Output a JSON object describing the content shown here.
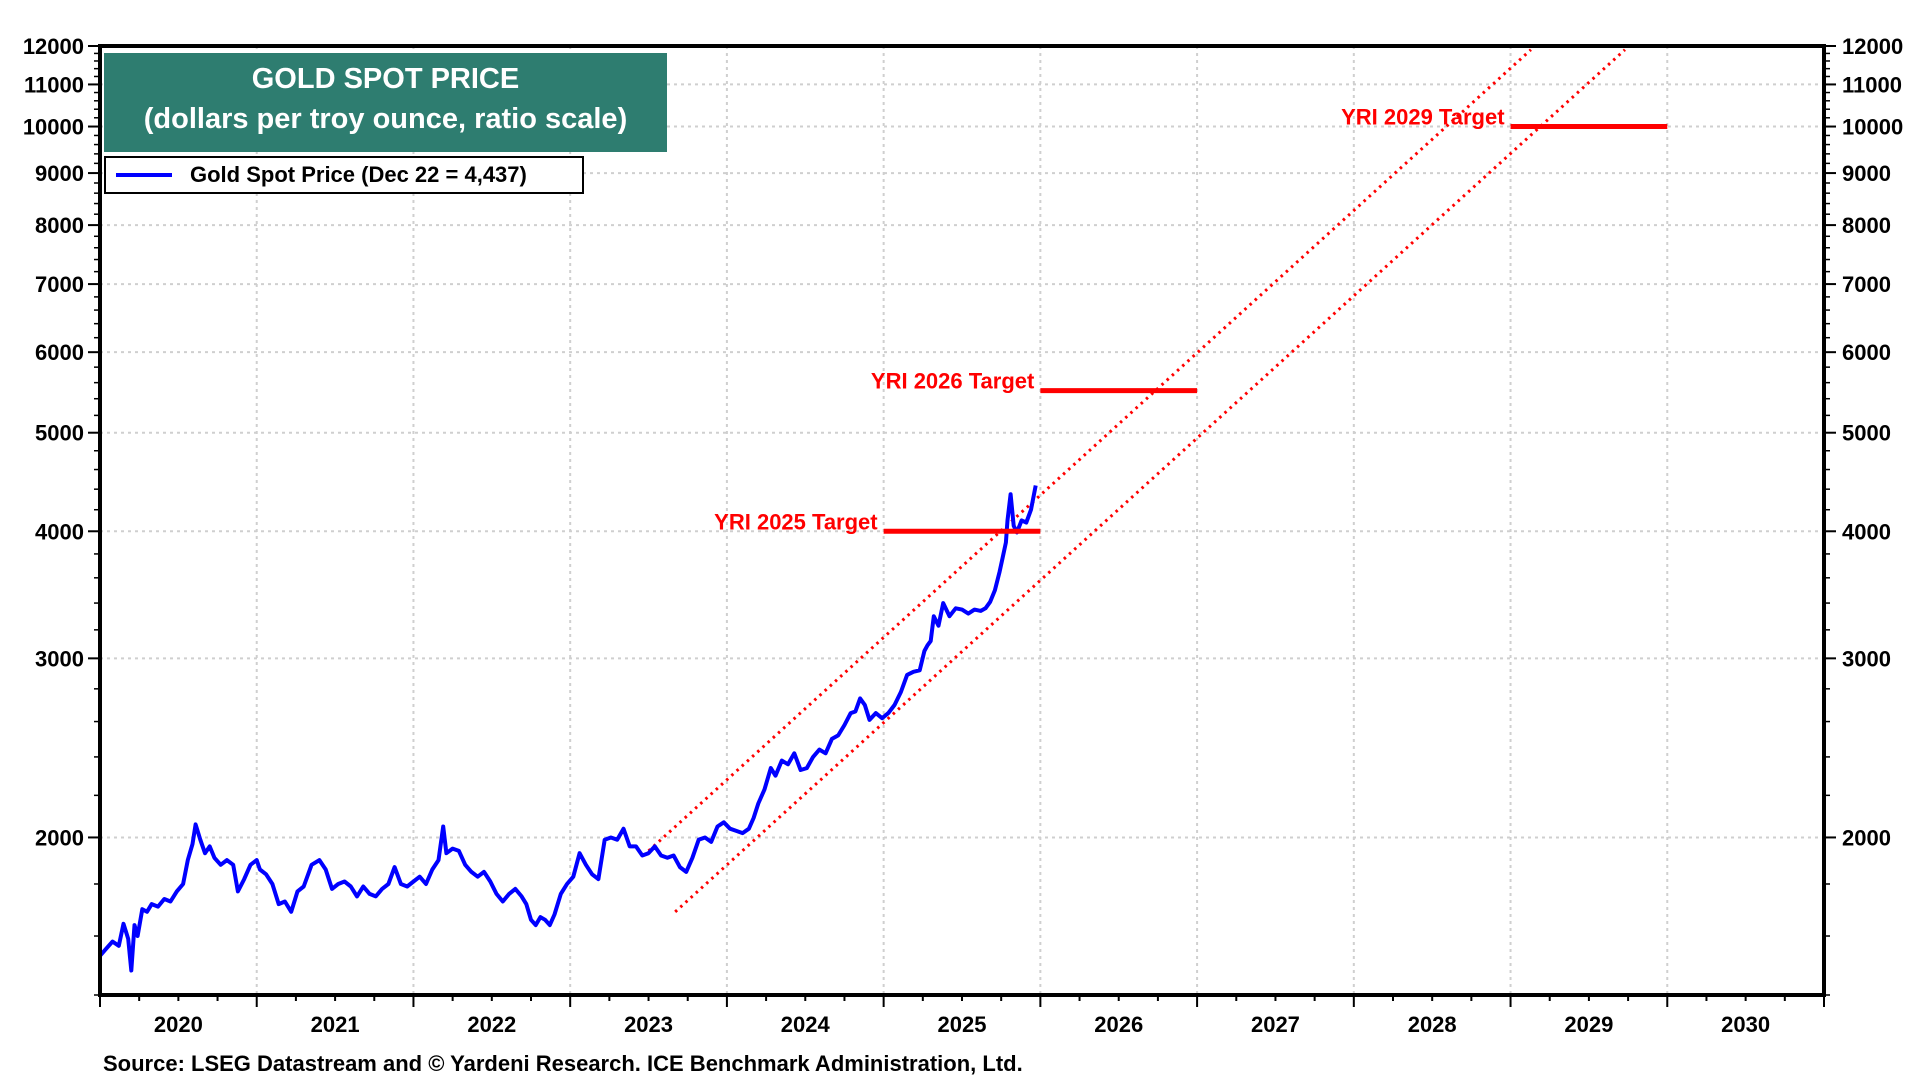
{
  "chart_data": {
    "type": "line",
    "title": "GOLD SPOT PRICE",
    "subtitle": "(dollars per troy ounce, ratio scale)",
    "xlabel": "",
    "ylabel": "",
    "yscale": "log",
    "ylim": [
      1400,
      12000
    ],
    "xlim": [
      2020.0,
      2031.0
    ],
    "grid": true,
    "legend_position": "top-left",
    "y_ticks": [
      2000,
      3000,
      4000,
      5000,
      6000,
      7000,
      8000,
      9000,
      10000,
      11000,
      12000
    ],
    "y_tick_labels": [
      "2000",
      "3000",
      "4000",
      "5000",
      "6000",
      "7000",
      "8000",
      "9000",
      "10000",
      "11000",
      "12000"
    ],
    "x_tick_labels": [
      "2020",
      "2021",
      "2022",
      "2023",
      "2024",
      "2025",
      "2026",
      "2027",
      "2028",
      "2029",
      "2030"
    ],
    "series": [
      {
        "name": "Gold Spot Price (Dec 22 = 4,437)",
        "color": "#0000ff",
        "x": [
          2020.0,
          2020.04,
          2020.08,
          2020.12,
          2020.15,
          2020.18,
          2020.2,
          2020.22,
          2020.24,
          2020.27,
          2020.3,
          2020.33,
          2020.37,
          2020.41,
          2020.45,
          2020.49,
          2020.53,
          2020.56,
          2020.59,
          2020.61,
          2020.64,
          2020.67,
          2020.7,
          2020.73,
          2020.77,
          2020.81,
          2020.85,
          2020.88,
          2020.92,
          2020.96,
          2021.0,
          2021.02,
          2021.06,
          2021.1,
          2021.14,
          2021.18,
          2021.22,
          2021.26,
          2021.3,
          2021.35,
          2021.4,
          2021.44,
          2021.48,
          2021.52,
          2021.56,
          2021.6,
          2021.64,
          2021.68,
          2021.72,
          2021.76,
          2021.8,
          2021.84,
          2021.88,
          2021.92,
          2021.96,
          2022.0,
          2022.04,
          2022.08,
          2022.12,
          2022.16,
          2022.19,
          2022.21,
          2022.25,
          2022.29,
          2022.33,
          2022.37,
          2022.41,
          2022.45,
          2022.49,
          2022.53,
          2022.57,
          2022.61,
          2022.65,
          2022.69,
          2022.72,
          2022.75,
          2022.78,
          2022.81,
          2022.84,
          2022.87,
          2022.9,
          2022.94,
          2022.98,
          2023.02,
          2023.06,
          2023.1,
          2023.14,
          2023.18,
          2023.22,
          2023.26,
          2023.3,
          2023.34,
          2023.38,
          2023.42,
          2023.46,
          2023.5,
          2023.54,
          2023.58,
          2023.62,
          2023.66,
          2023.7,
          2023.74,
          2023.78,
          2023.82,
          2023.86,
          2023.9,
          2023.94,
          2023.98,
          2024.02,
          2024.06,
          2024.1,
          2024.14,
          2024.17,
          2024.2,
          2024.24,
          2024.28,
          2024.31,
          2024.35,
          2024.39,
          2024.43,
          2024.47,
          2024.51,
          2024.55,
          2024.59,
          2024.63,
          2024.67,
          2024.71,
          2024.75,
          2024.79,
          2024.82,
          2024.85,
          2024.88,
          2024.91,
          2024.95,
          2024.99,
          2025.03,
          2025.07,
          2025.11,
          2025.15,
          2025.19,
          2025.23,
          2025.26,
          2025.28,
          2025.3,
          2025.32,
          2025.35,
          2025.38,
          2025.42,
          2025.46,
          2025.5,
          2025.54,
          2025.58,
          2025.62,
          2025.65,
          2025.68,
          2025.71,
          2025.74,
          2025.76,
          2025.78,
          2025.79,
          2025.81,
          2025.83,
          2025.85,
          2025.88,
          2025.91,
          2025.94,
          2025.97
        ],
        "y": [
          1530,
          1555,
          1580,
          1565,
          1645,
          1590,
          1480,
          1640,
          1600,
          1700,
          1690,
          1720,
          1710,
          1740,
          1730,
          1770,
          1800,
          1900,
          1970,
          2060,
          1990,
          1930,
          1960,
          1910,
          1880,
          1900,
          1880,
          1770,
          1820,
          1880,
          1900,
          1860,
          1840,
          1800,
          1720,
          1730,
          1690,
          1770,
          1790,
          1880,
          1900,
          1860,
          1780,
          1800,
          1810,
          1790,
          1750,
          1790,
          1760,
          1750,
          1780,
          1800,
          1870,
          1800,
          1790,
          1810,
          1830,
          1800,
          1860,
          1900,
          2050,
          1930,
          1950,
          1940,
          1880,
          1850,
          1830,
          1850,
          1810,
          1760,
          1730,
          1760,
          1780,
          1750,
          1720,
          1660,
          1640,
          1670,
          1660,
          1640,
          1680,
          1760,
          1800,
          1830,
          1930,
          1880,
          1840,
          1820,
          1990,
          2000,
          1990,
          2040,
          1960,
          1960,
          1920,
          1930,
          1960,
          1920,
          1910,
          1920,
          1870,
          1850,
          1910,
          1990,
          2000,
          1980,
          2050,
          2070,
          2040,
          2030,
          2020,
          2040,
          2090,
          2160,
          2230,
          2340,
          2300,
          2380,
          2360,
          2420,
          2330,
          2340,
          2400,
          2440,
          2420,
          2500,
          2520,
          2580,
          2650,
          2660,
          2740,
          2700,
          2610,
          2650,
          2620,
          2650,
          2700,
          2780,
          2890,
          2910,
          2920,
          3050,
          3090,
          3120,
          3300,
          3230,
          3400,
          3300,
          3360,
          3350,
          3320,
          3350,
          3340,
          3360,
          3410,
          3500,
          3650,
          3770,
          3900,
          4100,
          4350,
          4050,
          3990,
          4100,
          4080,
          4200,
          4437
        ]
      }
    ],
    "annotations": [
      {
        "text": "YRI 2025 Target",
        "value": 4000,
        "x_start": 2025.0,
        "x_end": 2026.0,
        "color": "#ff0000"
      },
      {
        "text": "YRI 2026 Target",
        "value": 5500,
        "x_start": 2026.0,
        "x_end": 2027.0,
        "color": "#ff0000"
      },
      {
        "text": "YRI 2029 Target",
        "value": 10000,
        "x_start": 2029.0,
        "x_end": 2030.0,
        "color": "#ff0000"
      }
    ],
    "channel_lines": [
      {
        "name": "upper-trend-channel",
        "style": "dotted",
        "color": "#ff0000",
        "x": [
          2023.5,
          2029.13
        ],
        "y": [
          1940,
          11900
        ]
      },
      {
        "name": "lower-trend-channel",
        "style": "dotted",
        "color": "#ff0000",
        "x": [
          2023.67,
          2029.73
        ],
        "y": [
          1690,
          11900
        ]
      }
    ]
  },
  "legend": {
    "entry": "Gold Spot Price (Dec 22 = 4,437)",
    "color": "#0000ff"
  },
  "title_box": {
    "line1": "GOLD SPOT PRICE",
    "line2": "(dollars per troy ounce, ratio scale)",
    "background": "#2e7d70"
  },
  "source": "Source: LSEG Datastream and © Yardeni Research. ICE Benchmark Administration, Ltd."
}
